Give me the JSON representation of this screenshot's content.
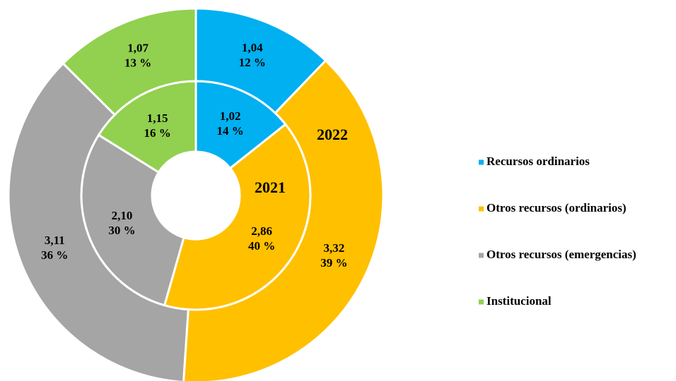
{
  "chart_data": {
    "type": "donut",
    "categories": [
      "Recursos ordinarios",
      "Otros recursos (ordinarios)",
      "Otros recursos (emergencias)",
      "Institucional"
    ],
    "colors": [
      "#00b0f0",
      "#ffc000",
      "#a5a5a5",
      "#92d050"
    ],
    "series": [
      {
        "name": "2021",
        "values": [
          1.02,
          2.86,
          2.1,
          1.15
        ],
        "value_labels": [
          "1,02",
          "2,86",
          "2,10",
          "1,15"
        ],
        "percent_labels": [
          "14 %",
          "40 %",
          "30 %",
          "16 %"
        ]
      },
      {
        "name": "2022",
        "values": [
          1.04,
          3.32,
          3.11,
          1.07
        ],
        "value_labels": [
          "1,04",
          "3,32",
          "3,11",
          "1,07"
        ],
        "percent_labels": [
          "12 %",
          "39 %",
          "36 %",
          "13 %"
        ]
      }
    ],
    "legend": "right"
  }
}
